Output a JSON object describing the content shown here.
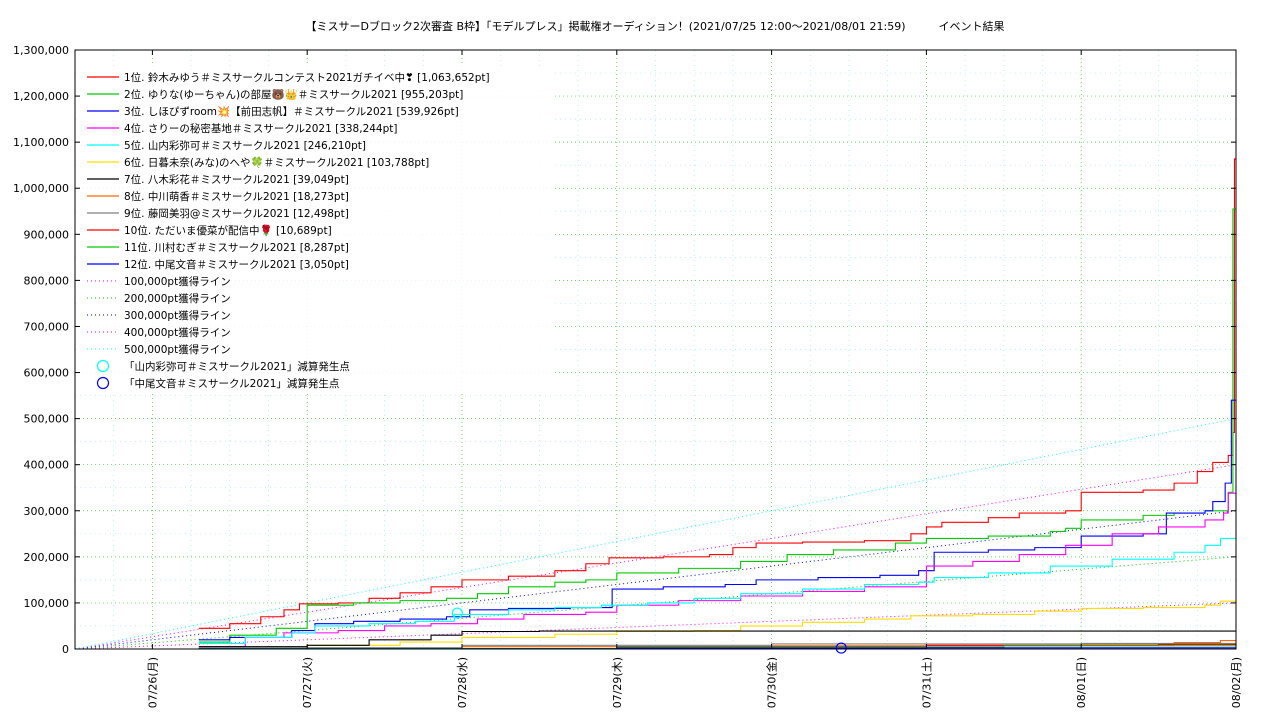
{
  "chart_data": {
    "type": "line",
    "title": "【ミスサーDブロック2次審査 B枠】「モデルプレス」掲載権オーディション！(2021/07/25 12:00～2021/08/01 21:59)　　　イベント結果",
    "xlabel": "",
    "ylabel": "",
    "ylim": [
      0,
      1300000
    ],
    "y_ticks": [
      "0",
      "100,000",
      "200,000",
      "300,000",
      "400,000",
      "500,000",
      "600,000",
      "700,000",
      "800,000",
      "900,000",
      "1,000,000",
      "1,100,000",
      "1,200,000",
      "1,300,000"
    ],
    "x_range_days": [
      -0.5,
      7.0
    ],
    "x_ticks": [
      {
        "label": "07/26(月)",
        "day": 0
      },
      {
        "label": "07/27(火)",
        "day": 1
      },
      {
        "label": "07/28(水)",
        "day": 2
      },
      {
        "label": "07/29(木)",
        "day": 3
      },
      {
        "label": "07/30(金)",
        "day": 4
      },
      {
        "label": "07/31(土)",
        "day": 5
      },
      {
        "label": "08/01(日)",
        "day": 6
      },
      {
        "label": "08/02(月)",
        "day": 7
      }
    ],
    "grid": true,
    "legend_position": "top-left",
    "series": [
      {
        "name": "1位. 鈴木みゆう＃ミスサークルコンテスト2021ガチイベ中❣ [1,063,652pt]",
        "color": "#ff0000",
        "points": [
          [
            0.3,
            45000
          ],
          [
            0.5,
            55000
          ],
          [
            0.7,
            70000
          ],
          [
            0.85,
            85000
          ],
          [
            0.95,
            98000
          ],
          [
            1.2,
            100000
          ],
          [
            1.4,
            110000
          ],
          [
            1.6,
            122000
          ],
          [
            1.8,
            135000
          ],
          [
            2.0,
            150000
          ],
          [
            2.3,
            158000
          ],
          [
            2.6,
            170000
          ],
          [
            2.8,
            185000
          ],
          [
            2.95,
            198000
          ],
          [
            3.3,
            200000
          ],
          [
            3.6,
            205000
          ],
          [
            3.75,
            220000
          ],
          [
            3.9,
            230000
          ],
          [
            4.2,
            232000
          ],
          [
            4.6,
            235000
          ],
          [
            4.9,
            250000
          ],
          [
            5.0,
            265000
          ],
          [
            5.1,
            275000
          ],
          [
            5.4,
            285000
          ],
          [
            5.6,
            295000
          ],
          [
            5.9,
            300000
          ],
          [
            6.0,
            340000
          ],
          [
            6.4,
            345000
          ],
          [
            6.6,
            360000
          ],
          [
            6.75,
            385000
          ],
          [
            6.85,
            405000
          ],
          [
            6.95,
            420000
          ],
          [
            6.98,
            470000
          ],
          [
            6.99,
            1063652
          ],
          [
            7.0,
            1063652
          ]
        ]
      },
      {
        "name": "2位. ゆりな(ゆーちゃん)の部屋🐻👑＃ミスサークル2021 [955,203pt]",
        "color": "#00cc00",
        "points": [
          [
            0.3,
            15000
          ],
          [
            0.5,
            30000
          ],
          [
            0.8,
            45000
          ],
          [
            1.0,
            95000
          ],
          [
            1.3,
            100000
          ],
          [
            1.6,
            105000
          ],
          [
            1.9,
            110000
          ],
          [
            2.1,
            120000
          ],
          [
            2.3,
            135000
          ],
          [
            2.6,
            145000
          ],
          [
            2.8,
            150000
          ],
          [
            3.0,
            165000
          ],
          [
            3.4,
            175000
          ],
          [
            3.8,
            190000
          ],
          [
            4.1,
            205000
          ],
          [
            4.4,
            215000
          ],
          [
            4.8,
            230000
          ],
          [
            5.0,
            240000
          ],
          [
            5.4,
            245000
          ],
          [
            5.8,
            255000
          ],
          [
            5.9,
            262000
          ],
          [
            6.0,
            280000
          ],
          [
            6.4,
            290000
          ],
          [
            6.6,
            295000
          ],
          [
            6.8,
            300000
          ],
          [
            6.95,
            340000
          ],
          [
            6.98,
            955203
          ],
          [
            7.0,
            955203
          ]
        ]
      },
      {
        "name": "3位. しほぴずroom💥【前田志帆】＃ミスサークル2021 [539,926pt]",
        "color": "#0000ff",
        "points": [
          [
            0.3,
            20000
          ],
          [
            0.5,
            25000
          ],
          [
            0.9,
            40000
          ],
          [
            1.05,
            55000
          ],
          [
            1.3,
            60000
          ],
          [
            1.6,
            65000
          ],
          [
            1.9,
            70000
          ],
          [
            2.05,
            85000
          ],
          [
            2.3,
            88000
          ],
          [
            2.7,
            90000
          ],
          [
            2.97,
            130000
          ],
          [
            3.3,
            135000
          ],
          [
            3.7,
            140000
          ],
          [
            3.9,
            150000
          ],
          [
            4.3,
            155000
          ],
          [
            4.7,
            160000
          ],
          [
            4.95,
            170000
          ],
          [
            5.05,
            210000
          ],
          [
            5.4,
            215000
          ],
          [
            5.7,
            220000
          ],
          [
            6.0,
            245000
          ],
          [
            6.4,
            250000
          ],
          [
            6.55,
            295000
          ],
          [
            6.8,
            300000
          ],
          [
            6.85,
            320000
          ],
          [
            6.93,
            360000
          ],
          [
            6.97,
            539926
          ],
          [
            7.0,
            539926
          ]
        ]
      },
      {
        "name": "4位. さりーの秘密基地＃ミスサークル2021 [338,244pt]",
        "color": "#ff00ff",
        "points": [
          [
            0.3,
            5000
          ],
          [
            0.6,
            25000
          ],
          [
            0.85,
            35000
          ],
          [
            1.2,
            40000
          ],
          [
            1.5,
            50000
          ],
          [
            1.8,
            55000
          ],
          [
            2.1,
            65000
          ],
          [
            2.4,
            75000
          ],
          [
            2.8,
            80000
          ],
          [
            3.0,
            95000
          ],
          [
            3.4,
            105000
          ],
          [
            3.8,
            115000
          ],
          [
            4.2,
            125000
          ],
          [
            4.6,
            135000
          ],
          [
            5.0,
            180000
          ],
          [
            5.3,
            190000
          ],
          [
            5.6,
            205000
          ],
          [
            5.9,
            225000
          ],
          [
            6.2,
            250000
          ],
          [
            6.5,
            265000
          ],
          [
            6.8,
            280000
          ],
          [
            6.92,
            295000
          ],
          [
            6.95,
            338244
          ],
          [
            7.0,
            338244
          ]
        ]
      },
      {
        "name": "5位. 山内彩弥可＃ミスサークル2021 [246,210pt]",
        "color": "#00ffff",
        "points": [
          [
            0.3,
            12000
          ],
          [
            0.6,
            25000
          ],
          [
            0.9,
            35000
          ],
          [
            1.05,
            50000
          ],
          [
            1.4,
            55000
          ],
          [
            1.7,
            60000
          ],
          [
            1.95,
            75000
          ],
          [
            2.3,
            85000
          ],
          [
            2.6,
            90000
          ],
          [
            2.9,
            95000
          ],
          [
            3.2,
            100000
          ],
          [
            3.5,
            110000
          ],
          [
            3.8,
            120000
          ],
          [
            4.2,
            130000
          ],
          [
            4.6,
            140000
          ],
          [
            4.95,
            145000
          ],
          [
            5.05,
            155000
          ],
          [
            5.4,
            165000
          ],
          [
            5.8,
            180000
          ],
          [
            6.2,
            195000
          ],
          [
            6.6,
            210000
          ],
          [
            6.8,
            225000
          ],
          [
            6.9,
            240000
          ],
          [
            7.0,
            246210
          ]
        ]
      },
      {
        "name": "6位. 日暮未奈(みな)のへや🍀＃ミスサークル2021 [103,788pt]",
        "color": "#ffdd00",
        "points": [
          [
            0.3,
            2000
          ],
          [
            1.0,
            8000
          ],
          [
            1.6,
            15000
          ],
          [
            2.0,
            25000
          ],
          [
            2.6,
            32000
          ],
          [
            3.0,
            38000
          ],
          [
            3.5,
            40000
          ],
          [
            3.8,
            50000
          ],
          [
            4.2,
            58000
          ],
          [
            4.6,
            65000
          ],
          [
            4.9,
            72000
          ],
          [
            5.3,
            75000
          ],
          [
            5.7,
            82000
          ],
          [
            6.0,
            88000
          ],
          [
            6.4,
            90000
          ],
          [
            6.8,
            95000
          ],
          [
            6.9,
            103788
          ],
          [
            7.0,
            103788
          ]
        ]
      },
      {
        "name": "7位. 八木彩花＃ミスサークル2021 [39,049pt]",
        "color": "#000000",
        "points": [
          [
            0.3,
            5000
          ],
          [
            1.0,
            8000
          ],
          [
            1.4,
            20000
          ],
          [
            1.8,
            30000
          ],
          [
            2.0,
            38000
          ],
          [
            2.5,
            39000
          ],
          [
            7.0,
            39049
          ]
        ]
      },
      {
        "name": "8位. 中川萌香＃ミスサークル2021 [18,273pt]",
        "color": "#ff6600",
        "points": [
          [
            0.3,
            2000
          ],
          [
            2.0,
            5000
          ],
          [
            4.0,
            7000
          ],
          [
            6.0,
            9000
          ],
          [
            6.6,
            14000
          ],
          [
            6.9,
            18273
          ],
          [
            7.0,
            18273
          ]
        ]
      },
      {
        "name": "9位. 藤岡美羽@ミスサークル2021 [12,498pt]",
        "color": "#808080",
        "points": [
          [
            0.3,
            3000
          ],
          [
            2.0,
            8000
          ],
          [
            4.0,
            11000
          ],
          [
            6.0,
            12000
          ],
          [
            7.0,
            12498
          ]
        ]
      },
      {
        "name": "10位. ただいま優菜が配信中🌹 [10,689pt]",
        "color": "#ff0000",
        "points": [
          [
            0.3,
            1000
          ],
          [
            3.0,
            5000
          ],
          [
            5.0,
            8000
          ],
          [
            6.5,
            10000
          ],
          [
            7.0,
            10689
          ]
        ]
      },
      {
        "name": "11位. 川村むぎ＃ミスサークル2021 [8,287pt]",
        "color": "#00cc00",
        "points": [
          [
            0.3,
            1000
          ],
          [
            3.0,
            4000
          ],
          [
            5.5,
            7000
          ],
          [
            7.0,
            8287
          ]
        ]
      },
      {
        "name": "12位. 中尾文音＃ミスサークル2021 [3,050pt]",
        "color": "#0000ff",
        "points": [
          [
            0.3,
            500
          ],
          [
            3.0,
            2000
          ],
          [
            5.0,
            2500
          ],
          [
            7.0,
            3050
          ]
        ]
      }
    ],
    "reference_lines": [
      {
        "name": "100,000pt獲得ライン",
        "color": "#ff00ff",
        "points": [
          [
            -0.5,
            0
          ],
          [
            7.0,
            100000
          ]
        ]
      },
      {
        "name": "200,000pt獲得ライン",
        "color": "#00cc00",
        "points": [
          [
            -0.5,
            0
          ],
          [
            7.0,
            200000
          ]
        ]
      },
      {
        "name": "300,000pt獲得ライン",
        "color": "#0000ff",
        "points": [
          [
            -0.5,
            0
          ],
          [
            7.0,
            300000
          ]
        ]
      },
      {
        "name": "400,000pt獲得ライン",
        "color": "#ff00ff",
        "points": [
          [
            -0.5,
            0
          ],
          [
            7.0,
            400000
          ]
        ]
      },
      {
        "name": "500,000pt獲得ライン",
        "color": "#00ffff",
        "points": [
          [
            -0.5,
            0
          ],
          [
            7.0,
            500000
          ]
        ]
      }
    ],
    "markers": [
      {
        "name": "「山内彩弥可＃ミスサークル2021」減算発生点",
        "color": "#00ffff",
        "points": [
          [
            1.97,
            78000
          ]
        ]
      },
      {
        "name": "「中尾文音＃ミスサークル2021」減算発生点",
        "color": "#0000ff",
        "points": [
          [
            4.45,
            2000
          ]
        ]
      }
    ]
  }
}
